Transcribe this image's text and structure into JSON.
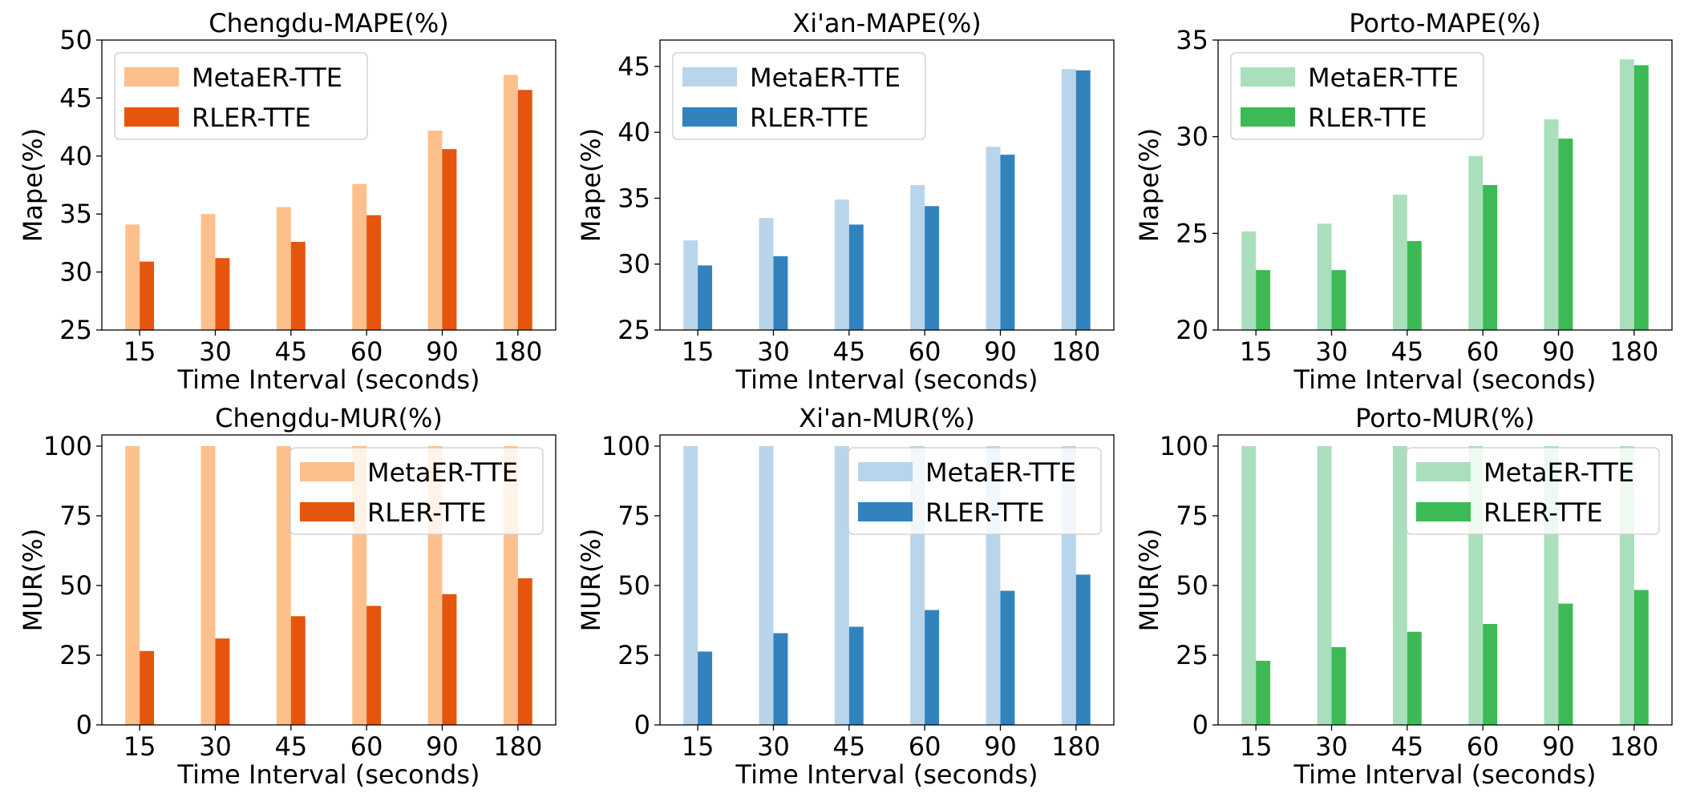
{
  "chart_data": [
    {
      "type": "bar",
      "id": "chengdu-mape",
      "title": "Chengdu-MAPE(%)",
      "xlabel": "Time Interval (seconds)",
      "ylabel": "Mape(%)",
      "categories": [
        "15",
        "30",
        "45",
        "60",
        "90",
        "180"
      ],
      "ylim": [
        25,
        50
      ],
      "yticks": [
        25,
        30,
        35,
        40,
        45,
        50
      ],
      "legend": "top-left",
      "series": [
        {
          "name": "MetaER-TTE",
          "color": "#fdc08d",
          "values": [
            34.1,
            35.0,
            35.6,
            37.6,
            42.2,
            47.0
          ]
        },
        {
          "name": "RLER-TTE",
          "color": "#e6550d",
          "values": [
            30.9,
            31.2,
            32.6,
            34.9,
            40.6,
            45.7
          ]
        }
      ]
    },
    {
      "type": "bar",
      "id": "xian-mape",
      "title": "Xi'an-MAPE(%)",
      "xlabel": "Time Interval (seconds)",
      "ylabel": "Mape(%)",
      "categories": [
        "15",
        "30",
        "45",
        "60",
        "90",
        "180"
      ],
      "ylim": [
        25,
        47
      ],
      "yticks": [
        25,
        30,
        35,
        40,
        45
      ],
      "legend": "top-left",
      "series": [
        {
          "name": "MetaER-TTE",
          "color": "#b9d5eb",
          "values": [
            31.8,
            33.5,
            34.9,
            36.0,
            38.9,
            44.8
          ]
        },
        {
          "name": "RLER-TTE",
          "color": "#3182bd",
          "values": [
            29.9,
            30.6,
            33.0,
            34.4,
            38.3,
            44.7
          ]
        }
      ]
    },
    {
      "type": "bar",
      "id": "porto-mape",
      "title": "Porto-MAPE(%)",
      "xlabel": "Time Interval (seconds)",
      "ylabel": "Mape(%)",
      "categories": [
        "15",
        "30",
        "45",
        "60",
        "90",
        "180"
      ],
      "ylim": [
        20,
        35
      ],
      "yticks": [
        20,
        25,
        30,
        35
      ],
      "legend": "top-left",
      "series": [
        {
          "name": "MetaER-TTE",
          "color": "#a9dfbd",
          "values": [
            25.1,
            25.5,
            27.0,
            29.0,
            30.9,
            34.0
          ]
        },
        {
          "name": "RLER-TTE",
          "color": "#3dba55",
          "values": [
            23.1,
            23.1,
            24.6,
            27.5,
            29.9,
            33.7
          ]
        }
      ]
    },
    {
      "type": "bar",
      "id": "chengdu-mur",
      "title": "Chengdu-MUR(%)",
      "xlabel": "Time Interval (seconds)",
      "ylabel": "MUR(%)",
      "categories": [
        "15",
        "30",
        "45",
        "60",
        "90",
        "180"
      ],
      "ylim": [
        0,
        104
      ],
      "yticks": [
        0,
        25,
        50,
        75,
        100
      ],
      "legend": "top-right",
      "series": [
        {
          "name": "MetaER-TTE",
          "color": "#fdc08d",
          "values": [
            100,
            100,
            100,
            100,
            100,
            100
          ]
        },
        {
          "name": "RLER-TTE",
          "color": "#e6550d",
          "values": [
            26.5,
            31.0,
            39.0,
            42.7,
            46.9,
            52.6
          ]
        }
      ]
    },
    {
      "type": "bar",
      "id": "xian-mur",
      "title": "Xi'an-MUR(%)",
      "xlabel": "Time Interval (seconds)",
      "ylabel": "MUR(%)",
      "categories": [
        "15",
        "30",
        "45",
        "60",
        "90",
        "180"
      ],
      "ylim": [
        0,
        104
      ],
      "yticks": [
        0,
        25,
        50,
        75,
        100
      ],
      "legend": "top-right",
      "series": [
        {
          "name": "MetaER-TTE",
          "color": "#b9d5eb",
          "values": [
            100,
            100,
            100,
            100,
            100,
            100
          ]
        },
        {
          "name": "RLER-TTE",
          "color": "#3182bd",
          "values": [
            26.3,
            32.9,
            35.2,
            41.2,
            48.1,
            53.9
          ]
        }
      ]
    },
    {
      "type": "bar",
      "id": "porto-mur",
      "title": "Porto-MUR(%)",
      "xlabel": "Time Interval (seconds)",
      "ylabel": "MUR(%)",
      "categories": [
        "15",
        "30",
        "45",
        "60",
        "90",
        "180"
      ],
      "ylim": [
        0,
        104
      ],
      "yticks": [
        0,
        25,
        50,
        75,
        100
      ],
      "legend": "top-right",
      "series": [
        {
          "name": "MetaER-TTE",
          "color": "#a9dfbd",
          "values": [
            100,
            100,
            100,
            100,
            100,
            100
          ]
        },
        {
          "name": "RLER-TTE",
          "color": "#3dba55",
          "values": [
            23.0,
            27.9,
            33.4,
            36.2,
            43.5,
            48.4
          ]
        }
      ]
    }
  ]
}
